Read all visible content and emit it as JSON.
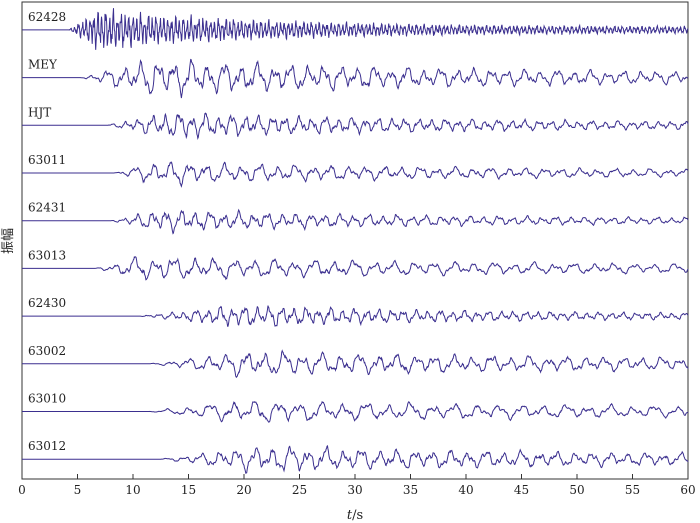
{
  "chart_data": {
    "type": "line",
    "title": "",
    "xlabel_italic": "t",
    "xlabel_unit": "/s",
    "ylabel": "振幅",
    "xlim": [
      0,
      60
    ],
    "x_ticks": [
      0,
      5,
      10,
      15,
      20,
      25,
      30,
      35,
      40,
      45,
      50,
      55,
      60
    ],
    "grid": false,
    "legend": "none",
    "trace_color": "#3b2f8f",
    "series": [
      {
        "name": "62428",
        "onset": 4.2,
        "peak_t": 8.5,
        "peak_amp": 1.6,
        "decay": 0.06,
        "main_period": 0.35,
        "clipped": true
      },
      {
        "name": "MEY",
        "onset": 5.2,
        "peak_t": 15.5,
        "peak_amp": 1.4,
        "decay": 0.03,
        "main_period": 1.5,
        "clipped": true
      },
      {
        "name": "HJT",
        "onset": 7.6,
        "peak_t": 16.5,
        "peak_amp": 1.0,
        "decay": 0.035,
        "main_period": 1.2,
        "clipped": false
      },
      {
        "name": "63011",
        "onset": 8.3,
        "peak_t": 14.5,
        "peak_amp": 0.9,
        "decay": 0.03,
        "main_period": 1.6,
        "clipped": false
      },
      {
        "name": "62431",
        "onset": 8.0,
        "peak_t": 15.0,
        "peak_amp": 0.85,
        "decay": 0.035,
        "main_period": 1.3,
        "clipped": false
      },
      {
        "name": "63013",
        "onset": 6.6,
        "peak_t": 13.5,
        "peak_amp": 0.95,
        "decay": 0.025,
        "main_period": 1.8,
        "clipped": false
      },
      {
        "name": "62430",
        "onset": 10.5,
        "peak_t": 24.0,
        "peak_amp": 0.8,
        "decay": 0.04,
        "main_period": 1.1,
        "clipped": false
      },
      {
        "name": "63002",
        "onset": 11.5,
        "peak_t": 25.0,
        "peak_amp": 0.95,
        "decay": 0.02,
        "main_period": 1.7,
        "clipped": false
      },
      {
        "name": "63010",
        "onset": 11.5,
        "peak_t": 24.0,
        "peak_amp": 0.85,
        "decay": 0.02,
        "main_period": 2.0,
        "clipped": false
      },
      {
        "name": "63012",
        "onset": 12.5,
        "peak_t": 26.0,
        "peak_amp": 1.0,
        "decay": 0.025,
        "main_period": 1.6,
        "clipped": false
      }
    ]
  }
}
